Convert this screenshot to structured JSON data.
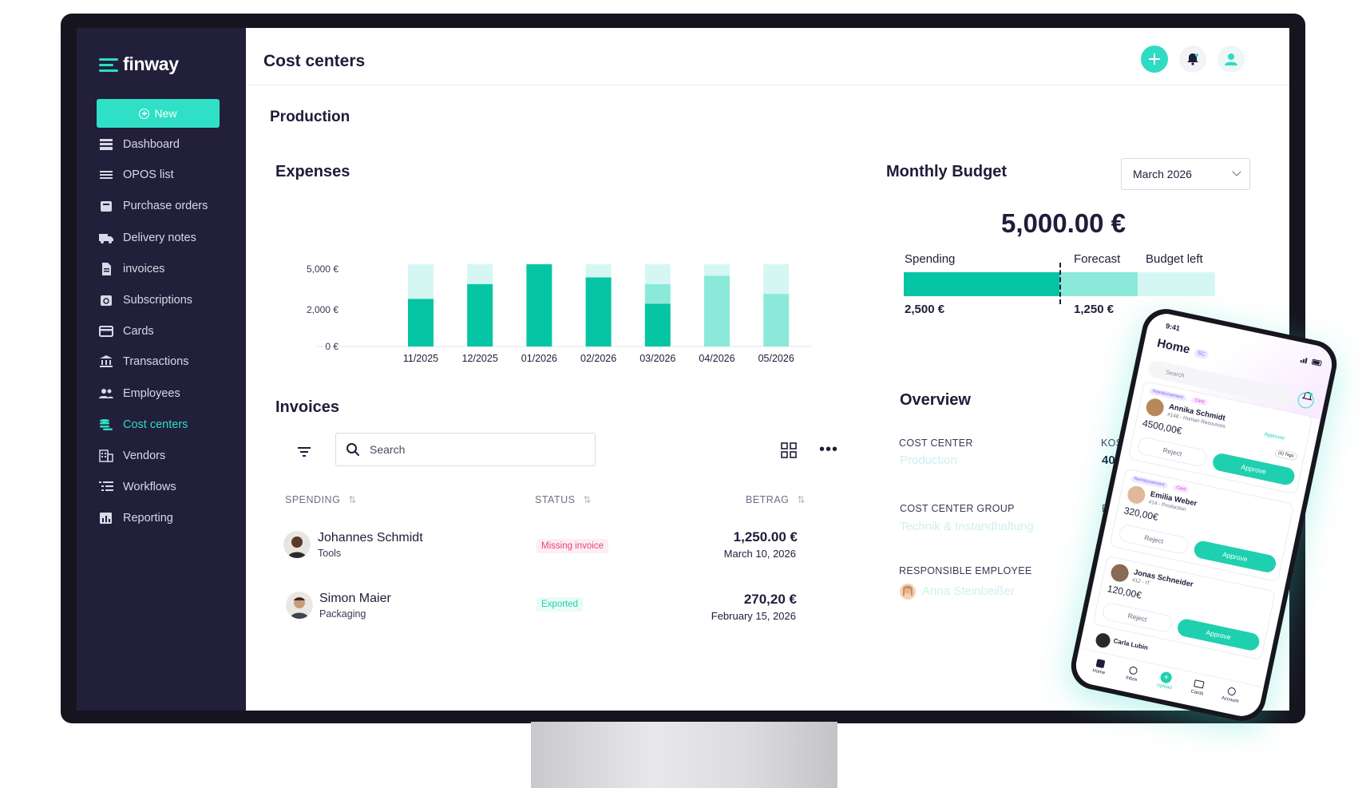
{
  "app": {
    "brand": "finway",
    "new_label": "New",
    "page_title": "Cost centers",
    "colors": {
      "sidebar": "#211f3a",
      "accent": "#2fdcc3",
      "bar_dark": "#06c5a4",
      "bar_light": "#d5f7f3",
      "bar_mid": "#8be9da"
    }
  },
  "sidebar": {
    "items": [
      {
        "label": "Dashboard",
        "icon": "dashboard-icon"
      },
      {
        "label": "OPOS list",
        "icon": "list-icon"
      },
      {
        "label": "Purchase orders",
        "icon": "cart-icon"
      },
      {
        "label": "Delivery notes",
        "icon": "truck-icon"
      },
      {
        "label": "invoices",
        "icon": "document-icon"
      },
      {
        "label": "Subscriptions",
        "icon": "calendar-refresh-icon"
      },
      {
        "label": "Cards",
        "icon": "card-icon"
      },
      {
        "label": "Transactions",
        "icon": "bank-icon"
      },
      {
        "label": "Employees",
        "icon": "people-icon"
      },
      {
        "label": "Cost centers",
        "icon": "coins-icon"
      },
      {
        "label": "Vendors",
        "icon": "building-icon"
      },
      {
        "label": "Workflows",
        "icon": "workflow-icon"
      },
      {
        "label": "Reporting",
        "icon": "chart-icon"
      }
    ],
    "active": "Cost centers"
  },
  "main": {
    "subtitle": "Production",
    "expenses_title": "Expenses",
    "invoices_title": "Invoices",
    "search_placeholder": "Search",
    "columns": {
      "spending": "SPENDING",
      "status": "STATUS",
      "amount": "BETRAG"
    },
    "rows": [
      {
        "name": "Johannes Schmidt",
        "category": "Tools",
        "status": "Missing invoice",
        "status_color": "#e8457a",
        "amount": "1,250.00 €",
        "date": "March 10, 2026"
      },
      {
        "name": "Simon Maier",
        "category": "Packaging",
        "status": "Exported",
        "status_color": "#1fd0b0",
        "amount": "270,20 €",
        "date": "February 15, 2026"
      }
    ]
  },
  "chart_data": {
    "type": "bar",
    "stacked": true,
    "categories": [
      "11/2025",
      "12/2025",
      "01/2026",
      "02/2026",
      "03/2026",
      "04/2026",
      "05/2026"
    ],
    "yticks": [
      "5,000 €",
      "2,000 €",
      "0 €"
    ],
    "series": [
      {
        "values": [
          2900,
          3800,
          5000,
          4200,
          2600,
          0,
          0
        ],
        "color": "#06c5a4"
      },
      {
        "values": [
          0,
          0,
          0,
          0,
          1200,
          4300,
          3200
        ],
        "color": "#8be9da"
      },
      {
        "values": [
          2100,
          1200,
          0,
          800,
          1200,
          700,
          1800
        ],
        "color": "#d5f7f3"
      }
    ],
    "ylim": [
      0,
      5000
    ],
    "grid": false
  },
  "budget": {
    "title": "Monthly Budget",
    "month": "March 2026",
    "total": "5,000.00 €",
    "labels": {
      "spending": "Spending",
      "forecast": "Forecast",
      "left": "Budget left"
    },
    "spending_value": "2,500 €",
    "forecast_value": "1,250 €",
    "spending_fraction": 0.5,
    "forecast_fraction": 0.25
  },
  "overview": {
    "title": "Overview",
    "cost_center_label": "COST CENTER",
    "cost_center_value": "Production",
    "group_label": "COST CENTER GROUP",
    "group_value": "Technik & Instandhaltung",
    "employee_label": "RESPONSIBLE EMPLOYEE",
    "employee_value": "Anna Steinbeißer",
    "cut_label": "KOS",
    "cut_value": "40",
    "cut_label2": "B",
    "cut_value2": "J"
  },
  "phone": {
    "time": "9:41",
    "title": "Home",
    "badge": "SC",
    "search": "Search",
    "tags": {
      "reimbursement": "Reimbursement",
      "card": "Card"
    },
    "approver": "Approver",
    "tag_count": "(6) Tags",
    "reject": "Reject",
    "approve": "Approve",
    "cards": [
      {
        "name": "Annika Schmidt",
        "sub": "#148 - Human Resources",
        "amount": "4500,00€"
      },
      {
        "name": "Emilia Weber",
        "sub": "#14 - Production",
        "amount": "320,00€"
      },
      {
        "name": "Jonas Schneider",
        "sub": "#12 - IT",
        "amount": "120,00€"
      },
      {
        "name": "Carla Lubin",
        "sub": "",
        "amount": ""
      }
    ],
    "tabs": [
      "Home",
      "Inbox",
      "Upload",
      "Cards",
      "Account"
    ]
  }
}
